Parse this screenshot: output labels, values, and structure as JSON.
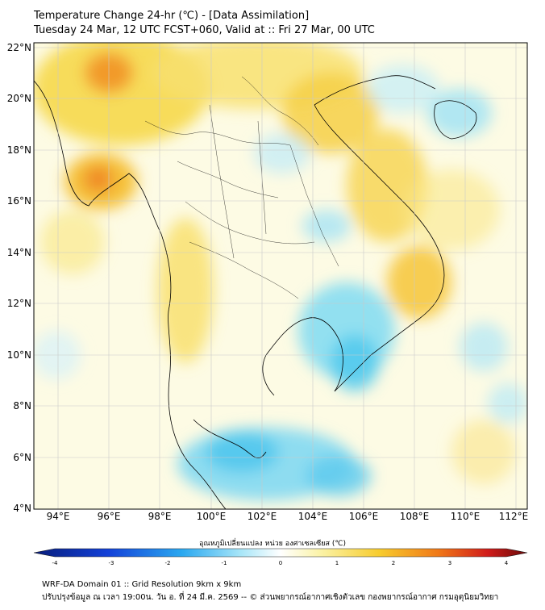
{
  "title_line1": "Temperature Change 24-hr (℃) - [Data Assimilation]",
  "title_line2": "Tuesday 24 Mar, 12 UTC FCST+060, Valid at :: Fri 27 Mar, 00 UTC",
  "lon_labels": [
    "94°E",
    "96°E",
    "98°E",
    "100°E",
    "102°E",
    "104°E",
    "106°E",
    "108°E",
    "110°E",
    "112°E"
  ],
  "lat_labels": [
    "22°N",
    "20°N",
    "18°N",
    "16°N",
    "14°N",
    "12°N",
    "10°N",
    "8°N",
    "6°N",
    "4°N"
  ],
  "colorbar": {
    "label": "อุณหภูมิเปลี่ยนแปลง หน่วย องศาเซลเซียส (℃)",
    "ticks": [
      "-4",
      "-3",
      "-2",
      "-1",
      "0",
      "1",
      "2",
      "3",
      "4"
    ],
    "min": -4,
    "max": 4
  },
  "footer_line1": "WRF-DA Domain 01 :: Grid Resolution 9km x 9km",
  "footer_line2": "ปรับปรุงข้อมูล ณ เวลา 19:00น. วัน อ. ที่ 24 มี.ค. 2569 -- © ส่วนพยากรณ์อากาศเชิงตัวเลข กองพยากรณ์อากาศ กรมอุตุนิยมวิทยา"
}
